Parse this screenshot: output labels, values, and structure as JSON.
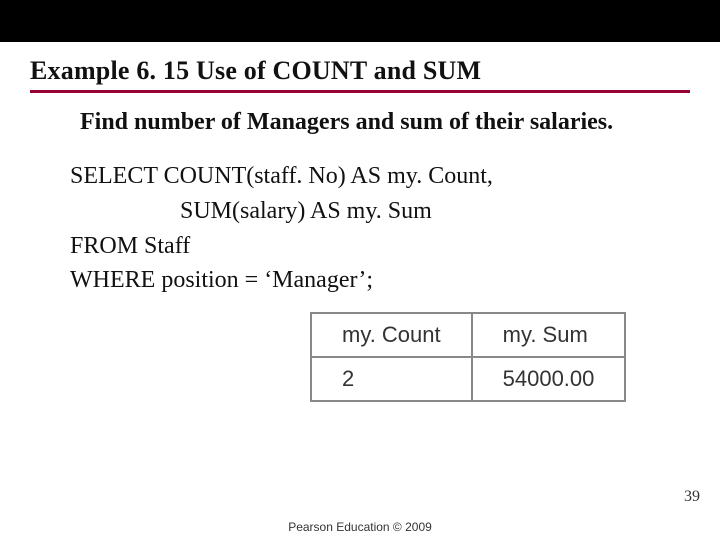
{
  "colors": {
    "topbar": "#000000",
    "rule": "#990033",
    "text": "#111111",
    "table_border": "#888888",
    "background": "#ffffff"
  },
  "heading": "Example 6. 15  Use of COUNT and SUM",
  "prompt": "Find number of Managers and sum of their salaries.",
  "sql": {
    "line1": "SELECT COUNT(staff. No) AS my. Count,",
    "line2": "SUM(salary) AS my. Sum",
    "line3": "FROM Staff",
    "line4": "WHERE position = ‘Manager’;"
  },
  "result": {
    "columns": [
      "my. Count",
      "my. Sum"
    ],
    "rows": [
      [
        "2",
        "54000.00"
      ]
    ]
  },
  "page_number": "39",
  "footer": "Pearson Education © 2009"
}
